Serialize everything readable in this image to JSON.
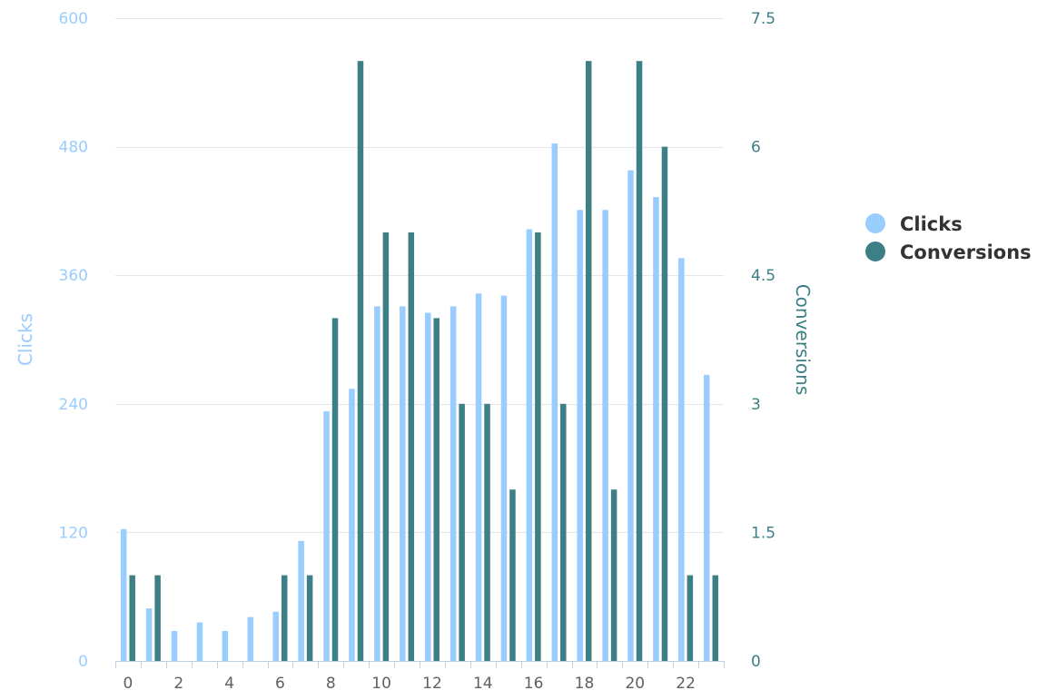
{
  "chart_data": {
    "type": "bar",
    "x": [
      0,
      1,
      2,
      3,
      4,
      5,
      6,
      7,
      8,
      9,
      10,
      11,
      12,
      13,
      14,
      15,
      16,
      17,
      18,
      19,
      20,
      21,
      22,
      23
    ],
    "xticks": [
      "0",
      "2",
      "4",
      "6",
      "8",
      "10",
      "12",
      "14",
      "16",
      "18",
      "20",
      "22"
    ],
    "series": [
      {
        "name": "Clicks",
        "axis": "left",
        "color": "#99ccff",
        "values": [
          123,
          49,
          28,
          36,
          28,
          41,
          46,
          112,
          233,
          254,
          331,
          331,
          325,
          331,
          343,
          341,
          403,
          483,
          421,
          421,
          458,
          433,
          376,
          267
        ]
      },
      {
        "name": "Conversions",
        "axis": "right",
        "color": "#3d7f86",
        "values": [
          1,
          1,
          0,
          0,
          0,
          0,
          1,
          1,
          4,
          7,
          5,
          5,
          4,
          3,
          3,
          2,
          5,
          3,
          7,
          2,
          7,
          6,
          1,
          1
        ]
      }
    ],
    "y_left": {
      "label": "Clicks",
      "lim": [
        0,
        600
      ],
      "ticks": [
        "0",
        "120",
        "240",
        "360",
        "480",
        "600"
      ],
      "color": "#99ccff"
    },
    "y_right": {
      "label": "Conversions",
      "lim": [
        0,
        7.5
      ],
      "ticks": [
        "0",
        "1.5",
        "3",
        "4.5",
        "6",
        "7.5"
      ],
      "color": "#3d7f86"
    },
    "grid": true,
    "legend": {
      "position": "right",
      "entries": [
        "Clicks",
        "Conversions"
      ]
    }
  }
}
